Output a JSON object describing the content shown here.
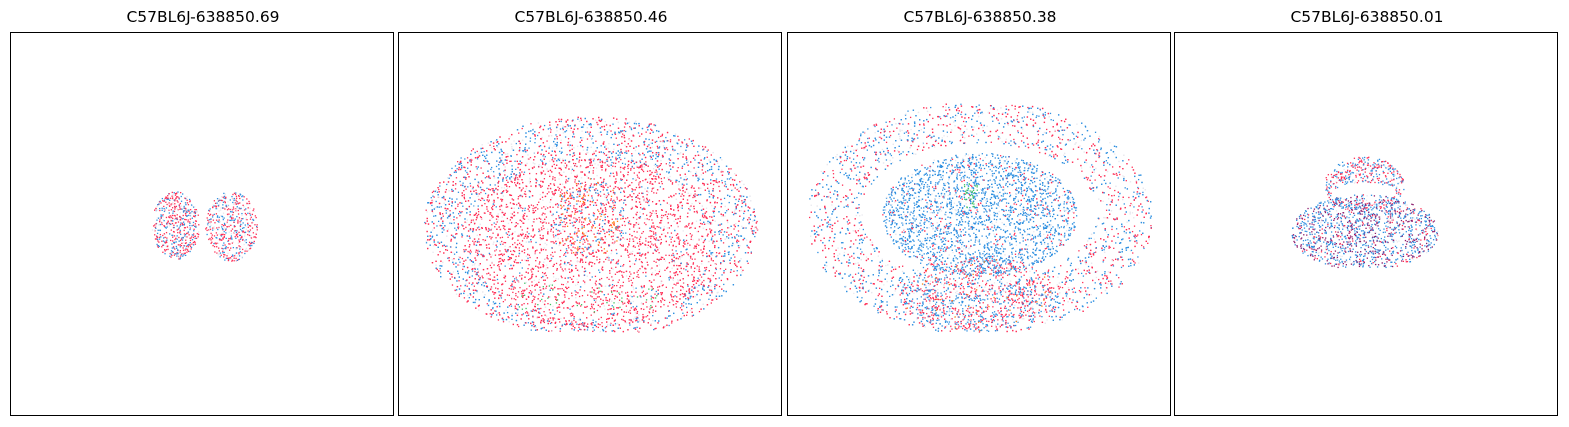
{
  "chart_data": [
    {
      "type": "scatter",
      "title": "C57BL6J-638850.69",
      "grid": false,
      "axes_visible": false,
      "series": [
        {
          "color": "#ff2d55"
        },
        {
          "color": "#2d8fe0"
        },
        {
          "color": "#e8e8ee"
        }
      ]
    },
    {
      "type": "scatter",
      "title": "C57BL6J-638850.46",
      "grid": false,
      "axes_visible": false,
      "series": [
        {
          "color": "#ff2d55"
        },
        {
          "color": "#2d8fe0"
        },
        {
          "color": "#ff7f0e"
        },
        {
          "color": "#3cc060"
        },
        {
          "color": "#e8e8ee"
        }
      ]
    },
    {
      "type": "scatter",
      "title": "C57BL6J-638850.38",
      "grid": false,
      "axes_visible": false,
      "series": [
        {
          "color": "#ff2d55"
        },
        {
          "color": "#2d8fe0"
        },
        {
          "color": "#ff7f0e"
        },
        {
          "color": "#3cc060"
        },
        {
          "color": "#e8e8ee"
        }
      ]
    },
    {
      "type": "scatter",
      "title": "C57BL6J-638850.01",
      "grid": false,
      "axes_visible": false,
      "series": [
        {
          "color": "#ff2d55"
        },
        {
          "color": "#2d8fe0"
        },
        {
          "color": "#8b1a6b"
        },
        {
          "color": "#e8e8ee"
        }
      ]
    }
  ]
}
